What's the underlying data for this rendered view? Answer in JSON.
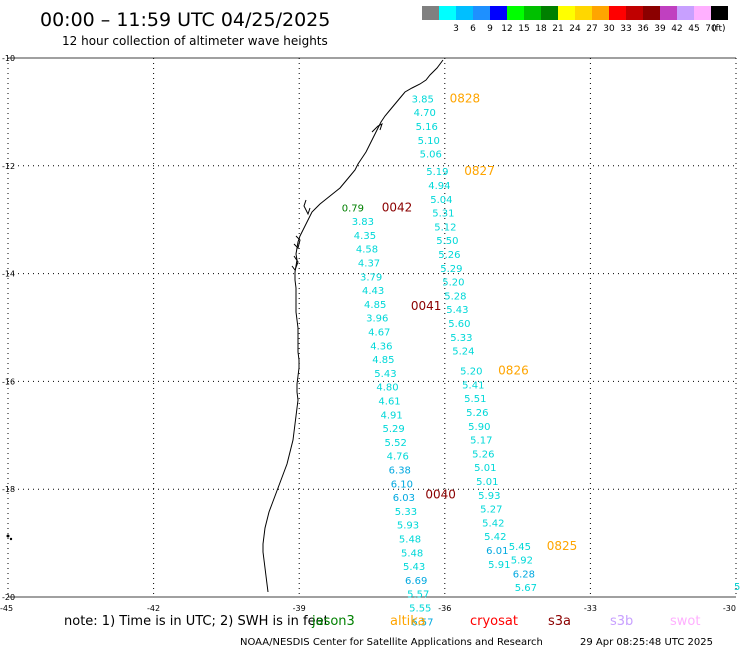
{
  "header": {
    "title": "00:00 – 11:59 UTC 04/25/2025",
    "subtitle": "12 hour collection of altimeter wave heights",
    "legend_unit": "(ft)",
    "legend": [
      {
        "label": "",
        "color": "#808080"
      },
      {
        "label": "3",
        "color": "#00ffff"
      },
      {
        "label": "6",
        "color": "#00bfff"
      },
      {
        "label": "9",
        "color": "#1e90ff"
      },
      {
        "label": "12",
        "color": "#0000ff"
      },
      {
        "label": "15",
        "color": "#00ff00"
      },
      {
        "label": "18",
        "color": "#00c000"
      },
      {
        "label": "21",
        "color": "#008000"
      },
      {
        "label": "24",
        "color": "#ffff00"
      },
      {
        "label": "27",
        "color": "#ffd700"
      },
      {
        "label": "30",
        "color": "#ffa500"
      },
      {
        "label": "33",
        "color": "#ff0000"
      },
      {
        "label": "36",
        "color": "#c00000"
      },
      {
        "label": "39",
        "color": "#8b0000"
      },
      {
        "label": "42",
        "color": "#c040c0"
      },
      {
        "label": "45",
        "color": "#c8a0ff"
      },
      {
        "label": "70",
        "color": "#ffb0ff"
      },
      {
        "label": "",
        "color": "#000000"
      }
    ]
  },
  "axes": {
    "lat_ticks": [
      "-10",
      "-12",
      "-14",
      "-16",
      "-18",
      "-20"
    ],
    "lon_ticks": [
      "-45",
      "-42",
      "-39",
      "-36",
      "-33",
      "-30"
    ],
    "lat_range": [
      -20,
      -10
    ],
    "lon_range": [
      -45,
      -30
    ]
  },
  "tracks": [
    {
      "time": "0042",
      "time_color": "#8b0000",
      "lon": -37.3,
      "lat": -12.77,
      "values": [
        "0.79",
        "3.83",
        "4.35",
        "4.58",
        "4.37",
        "3.79",
        "4.43",
        "4.85",
        "3.96",
        "4.67",
        "4.36",
        "4.85",
        "5.43",
        "4.80",
        "4.61",
        "4.91",
        "5.29",
        "5.52",
        "4.76",
        "6.38",
        "6.10",
        "6.03",
        "5.33",
        "5.93",
        "5.48",
        "5.48",
        "5.43",
        "6.69",
        "5.57",
        "5.55",
        "6.57"
      ]
    },
    {
      "time": "0041",
      "time_color": "#8b0000",
      "lon": -36.7,
      "lat": -14.6,
      "values": []
    },
    {
      "time": "0040",
      "time_color": "#8b0000",
      "lon": -36.4,
      "lat": -18.1,
      "values": []
    },
    {
      "time": "0828",
      "time_color": "#ffa500",
      "lon": -35.9,
      "lat": -10.75,
      "values": [
        "3.85",
        "4.70",
        "5.16",
        "5.10",
        "5.06"
      ]
    },
    {
      "time": "0827",
      "time_color": "#ffa500",
      "lon": -35.6,
      "lat": -12.1,
      "values": [
        "5.19",
        "4.94",
        "5.04",
        "5.31",
        "5.12",
        "5.50",
        "5.26",
        "5.29",
        "5.20",
        "5.28",
        "5.43",
        "5.60",
        "5.33",
        "5.24"
      ]
    },
    {
      "time": "0826",
      "time_color": "#ffa500",
      "lon": -34.9,
      "lat": -15.8,
      "values": [
        "5.20",
        "5.41",
        "5.51",
        "5.26",
        "5.90",
        "5.17",
        "5.26",
        "5.01",
        "5.01",
        "5.93",
        "5.27",
        "5.42",
        "5.42",
        "6.01",
        "5.91"
      ]
    },
    {
      "time": "0825",
      "time_color": "#ffa500",
      "lon": -33.9,
      "lat": -19.05,
      "values": [
        "5.45",
        "5.92",
        "6.28",
        "5.67"
      ]
    }
  ],
  "edge_value": "5",
  "footer": {
    "note": "note: 1) Time is in UTC; 2) SWH is in feet",
    "satellites": [
      {
        "name": "jason3",
        "color": "#008000"
      },
      {
        "name": "altika",
        "color": "#ffa500"
      },
      {
        "name": "cryosat",
        "color": "#ff0000"
      },
      {
        "name": "s3a",
        "color": "#8b0000"
      },
      {
        "name": "s3b",
        "color": "#c8a0ff"
      },
      {
        "name": "swot",
        "color": "#ffb0ff"
      }
    ],
    "credit": "NOAA/NESDIS Center for Satellite Applications and Research",
    "timestamp": "29 Apr 08:25:48 UTC 2025"
  }
}
